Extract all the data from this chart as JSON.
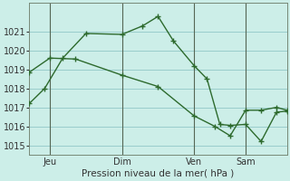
{
  "xlabel": "Pression niveau de la mer( hPa )",
  "background_color": "#cceee8",
  "grid_color": "#99cccc",
  "line_color": "#2d6a2d",
  "ylim": [
    1014.5,
    1022.5
  ],
  "yticks": [
    1015,
    1016,
    1017,
    1018,
    1019,
    1020,
    1021
  ],
  "day_labels": [
    "Jeu",
    "Dim",
    "Ven",
    "Sam"
  ],
  "day_positions": [
    0.08,
    0.36,
    0.64,
    0.84
  ],
  "vline_positions": [
    0.08,
    0.36,
    0.64,
    0.84
  ],
  "line1_x": [
    0.0,
    0.06,
    0.13,
    0.22,
    0.36,
    0.44,
    0.5,
    0.56,
    0.64,
    0.69,
    0.74,
    0.78,
    0.84,
    0.9,
    0.96,
    1.0
  ],
  "line1_y": [
    1017.2,
    1018.0,
    1019.6,
    1020.9,
    1020.85,
    1021.3,
    1021.8,
    1020.5,
    1019.2,
    1018.5,
    1016.1,
    1016.05,
    1016.1,
    1015.2,
    1016.75,
    1016.8
  ],
  "line2_x": [
    0.0,
    0.08,
    0.18,
    0.36,
    0.5,
    0.64,
    0.72,
    0.78,
    0.84,
    0.9,
    0.96,
    1.0
  ],
  "line2_y": [
    1018.85,
    1019.6,
    1019.55,
    1018.7,
    1018.1,
    1016.55,
    1016.0,
    1015.5,
    1016.85,
    1016.85,
    1017.0,
    1016.85
  ]
}
